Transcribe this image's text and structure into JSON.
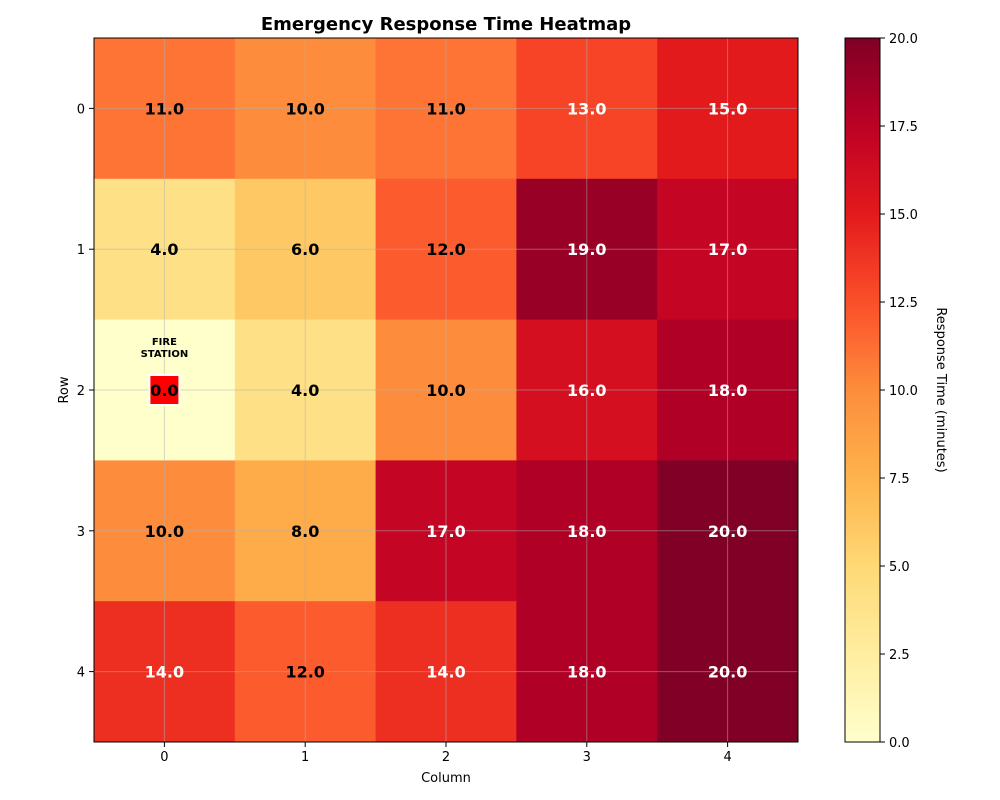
{
  "chart_data": {
    "type": "heatmap",
    "title": "Emergency Response Time Heatmap",
    "xlabel": "Column",
    "ylabel": "Row",
    "x_ticks": [
      "0",
      "1",
      "2",
      "3",
      "4"
    ],
    "y_ticks": [
      "0",
      "1",
      "2",
      "3",
      "4"
    ],
    "values": [
      [
        11.0,
        10.0,
        11.0,
        13.0,
        15.0
      ],
      [
        4.0,
        6.0,
        12.0,
        19.0,
        17.0
      ],
      [
        0.0,
        4.0,
        10.0,
        16.0,
        18.0
      ],
      [
        10.0,
        8.0,
        17.0,
        18.0,
        20.0
      ],
      [
        14.0,
        12.0,
        14.0,
        18.0,
        20.0
      ]
    ],
    "value_labels": [
      [
        "11.0",
        "10.0",
        "11.0",
        "13.0",
        "15.0"
      ],
      [
        "4.0",
        "6.0",
        "12.0",
        "19.0",
        "17.0"
      ],
      [
        "0.0",
        "4.0",
        "10.0",
        "16.0",
        "18.0"
      ],
      [
        "10.0",
        "8.0",
        "17.0",
        "18.0",
        "20.0"
      ],
      [
        "14.0",
        "12.0",
        "14.0",
        "18.0",
        "20.0"
      ]
    ],
    "colormap": "YlOrRd",
    "vmin": 0,
    "vmax": 20,
    "grid": true,
    "colorbar": {
      "label": "Response Time (minutes)",
      "ticks": [
        "0.0",
        "2.5",
        "5.0",
        "7.5",
        "10.0",
        "12.5",
        "15.0",
        "17.5",
        "20.0"
      ]
    },
    "annotation": {
      "row": 2,
      "col": 0,
      "text_line1": "FIRE",
      "text_line2": "STATION",
      "marker_color": "#ff0000"
    }
  }
}
